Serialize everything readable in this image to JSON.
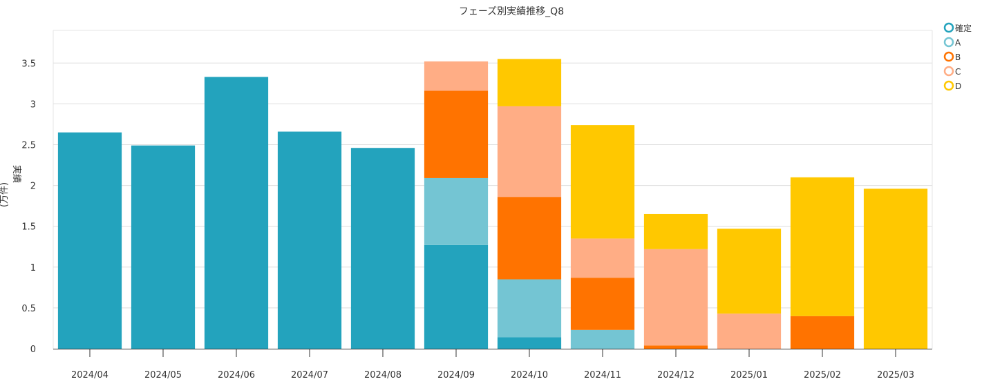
{
  "chart_data": {
    "type": "bar",
    "stacked": true,
    "title": "フェーズ別実績推移_Q8",
    "ylabel_main": "実績",
    "ylabel_unit": "(万件)",
    "ylim": [
      0,
      3.9
    ],
    "yticks": [
      0,
      0.5,
      1,
      1.5,
      2,
      2.5,
      3,
      3.5
    ],
    "ytick_labels": [
      "0",
      "0.5",
      "1",
      "1.5",
      "2",
      "2.5",
      "3",
      "3.5"
    ],
    "categories": [
      "2024/04",
      "2024/05",
      "2024/06",
      "2024/07",
      "2024/08",
      "2024/09",
      "2024/10",
      "2024/11",
      "2024/12",
      "2025/01",
      "2025/02",
      "2025/03"
    ],
    "grid": true,
    "legend_position": "top-right",
    "series": [
      {
        "name": "確定",
        "color": "#23a3bd",
        "values": [
          2.65,
          2.49,
          3.33,
          2.66,
          2.46,
          1.27,
          0.14,
          0,
          0,
          0,
          0,
          0
        ]
      },
      {
        "name": "A",
        "color": "#74c5d3",
        "values": [
          0,
          0,
          0,
          0,
          0,
          0.82,
          0.71,
          0.23,
          0,
          0,
          0,
          0
        ]
      },
      {
        "name": "B",
        "color": "#ff7300",
        "values": [
          0,
          0,
          0,
          0,
          0,
          1.07,
          1.01,
          0.64,
          0.04,
          0,
          0.4,
          0
        ]
      },
      {
        "name": "C",
        "color": "#ffad85",
        "values": [
          0,
          0,
          0,
          0,
          0,
          0.36,
          1.11,
          0.48,
          1.18,
          0.43,
          0,
          0
        ]
      },
      {
        "name": "D",
        "color": "#ffc800",
        "values": [
          0,
          0,
          0,
          0,
          0,
          0,
          0.58,
          1.39,
          0.43,
          1.04,
          1.7,
          1.96
        ]
      }
    ]
  }
}
